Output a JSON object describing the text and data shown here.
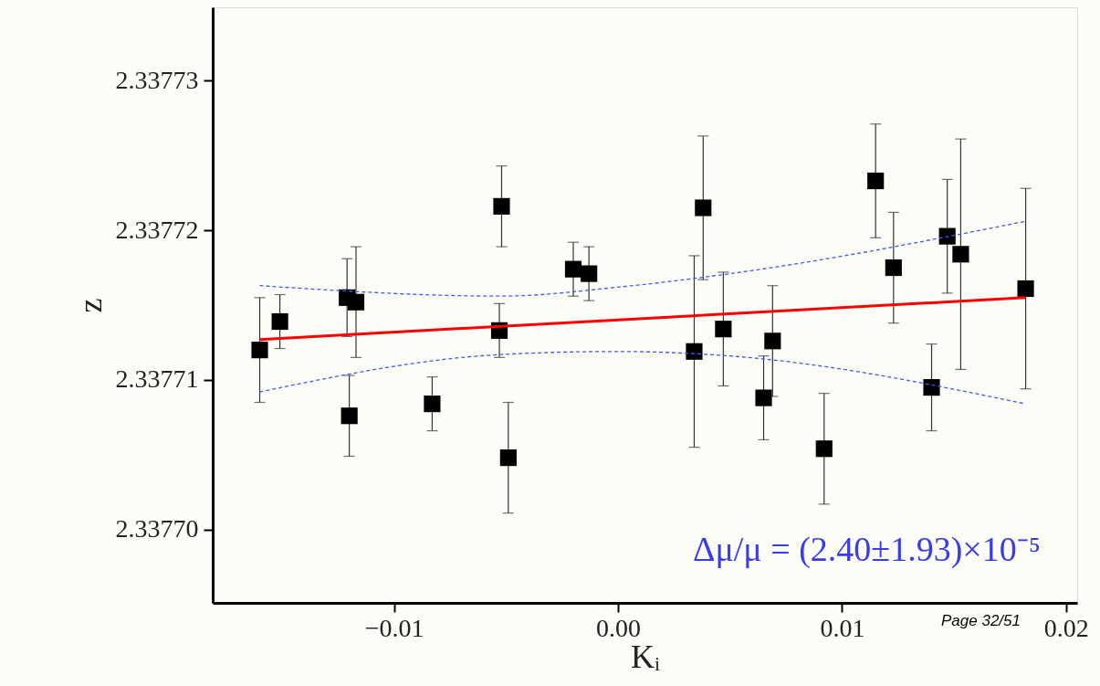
{
  "chart_data": {
    "type": "scatter",
    "xlabel": "Kᵢ",
    "ylabel": "z",
    "xlim": [
      -0.0181,
      0.0205
    ],
    "ylim": [
      2.3376951,
      2.3377349
    ],
    "xticks": [
      {
        "value": -0.01,
        "label": "−0.01"
      },
      {
        "value": 0.0,
        "label": "0.00"
      },
      {
        "value": 0.01,
        "label": "0.01"
      },
      {
        "value": 0.02,
        "label": "0.02"
      }
    ],
    "yticks": [
      {
        "value": 2.3377,
        "label": "2.33770"
      },
      {
        "value": 2.33771,
        "label": "2.33771"
      },
      {
        "value": 2.33772,
        "label": "2.33772"
      },
      {
        "value": 2.33773,
        "label": "2.33773"
      }
    ],
    "grid": false,
    "annotations": [
      "Δμ/μ = (2.40±1.93)×10⁻⁵",
      "Page 32/51"
    ],
    "series": [
      {
        "marker": "square",
        "color": "#000000",
        "x": [
          -0.016,
          -0.0151,
          -0.0121,
          -0.0117,
          -0.012,
          -0.0083,
          -0.0052,
          -0.0053,
          -0.0049,
          -0.002,
          -0.0013,
          0.0034,
          0.0038,
          0.0047,
          0.0065,
          0.0069,
          0.0092,
          0.0115,
          0.0123,
          0.014,
          0.0147,
          0.0153,
          0.0182
        ],
        "values": [
          2.337712,
          2.3377139,
          2.3377155,
          2.3377152,
          2.3377076,
          2.3377084,
          2.3377216,
          2.3377133,
          2.3377048,
          2.3377174,
          2.3377171,
          2.3377119,
          2.3377215,
          2.3377134,
          2.3377088,
          2.3377126,
          2.3377054,
          2.3377233,
          2.3377175,
          2.3377095,
          2.3377196,
          2.3377184,
          2.3377161
        ],
        "errors": [
          3.5e-06,
          1.8e-06,
          2.6e-06,
          3.7e-06,
          2.7e-06,
          1.8e-06,
          2.7e-06,
          1.8e-06,
          3.7e-06,
          1.8e-06,
          1.8e-06,
          6.4e-06,
          4.8e-06,
          3.8e-06,
          2.8e-06,
          3.7e-06,
          3.7e-06,
          3.8e-06,
          3.7e-06,
          2.9e-06,
          3.8e-06,
          7.7e-06,
          6.7e-06
        ]
      },
      {
        "type": "line",
        "color": "#ff0000",
        "line_style": "solid",
        "x": [
          -0.016,
          0.0182
        ],
        "values": [
          2.3377127,
          2.3377155
        ]
      },
      {
        "type": "line",
        "color": "#4455ff",
        "line_style": "dashed",
        "x": [
          -0.016,
          -0.0052,
          0.0,
          0.005,
          0.0182
        ],
        "values": [
          2.3377163,
          2.3377156,
          2.3377162,
          2.3377171,
          2.3377206
        ]
      },
      {
        "type": "line",
        "color": "#4455ff",
        "line_style": "dashed",
        "x": [
          -0.016,
          -0.0052,
          0.0,
          0.005,
          0.0182
        ],
        "values": [
          2.3377092,
          2.3377117,
          2.3377119,
          2.3377116,
          2.3377084
        ]
      }
    ]
  }
}
